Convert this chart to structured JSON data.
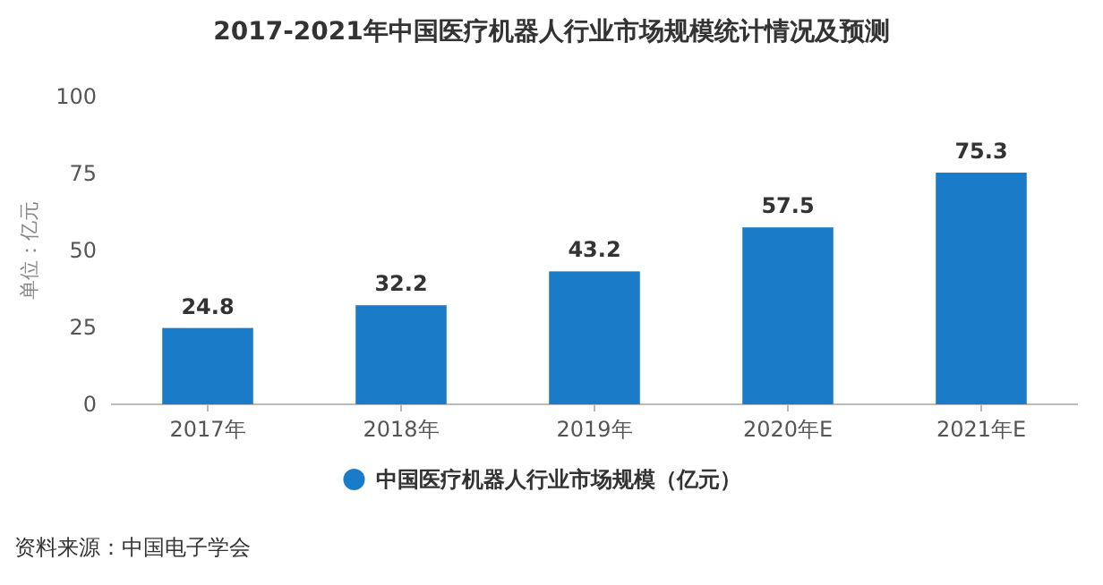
{
  "chart_data": {
    "type": "bar",
    "title": "2017-2021年中国医疗机器人行业市场规模统计情况及预测",
    "ylabel": "单位：亿元",
    "categories": [
      "2017年",
      "2018年",
      "2019年",
      "2020年E",
      "2021年E"
    ],
    "series": [
      {
        "name": "中国医疗机器人行业市场规模（亿元）",
        "color": "#1a7cc9",
        "values": [
          24.8,
          32.2,
          43.2,
          57.5,
          75.3
        ]
      }
    ],
    "ylim": [
      0,
      100
    ],
    "yticks": [
      0,
      25,
      50,
      75,
      100
    ],
    "data_labels": true,
    "legend": "bottom",
    "grid": false,
    "annotations": [
      "资料来源：中国电子学会"
    ]
  }
}
